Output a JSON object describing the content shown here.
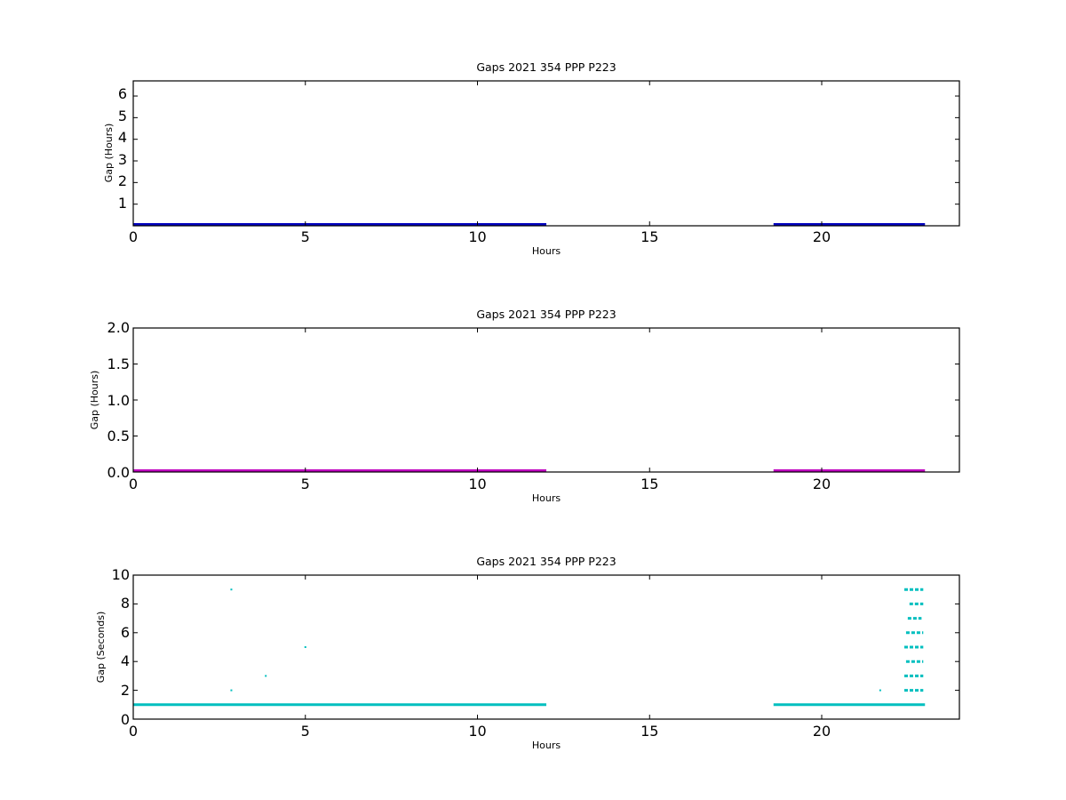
{
  "chart_data": [
    {
      "type": "scatter",
      "title": "Gaps 2021 354 PPP  P223",
      "xlabel": "Hours",
      "ylabel": "Gap (Hours)",
      "xlim": [
        0,
        24
      ],
      "ylim": [
        0,
        6.7
      ],
      "xticks": [
        "0",
        "5",
        "10",
        "15",
        "20"
      ],
      "yticks": [
        "1",
        "2",
        "3",
        "4",
        "5",
        "6"
      ],
      "color": "#0000bf",
      "grid": false,
      "segments": [
        {
          "x_start": 0.0,
          "x_end": 12.0,
          "y": 0.0
        },
        {
          "x_start": 18.6,
          "x_end": 23.0,
          "y": 0.0
        }
      ],
      "points": []
    },
    {
      "type": "scatter",
      "title": "Gaps 2021 354 PPP  P223",
      "xlabel": "Hours",
      "ylabel": "Gap (Hours)",
      "xlim": [
        0,
        24
      ],
      "ylim": [
        0,
        2.0
      ],
      "xticks": [
        "0",
        "5",
        "10",
        "15",
        "20"
      ],
      "yticks": [
        "0.0",
        "0.5",
        "1.0",
        "1.5",
        "2.0"
      ],
      "color": "#bf00bf",
      "grid": false,
      "segments": [
        {
          "x_start": 0.0,
          "x_end": 12.0,
          "y": 0.0
        },
        {
          "x_start": 18.6,
          "x_end": 23.0,
          "y": 0.0
        }
      ],
      "points": []
    },
    {
      "type": "scatter",
      "title": "Gaps 2021 354 PPP  P223",
      "xlabel": "Hours",
      "ylabel": "Gap (Seconds)",
      "xlim": [
        0,
        24
      ],
      "ylim": [
        0,
        10
      ],
      "xticks": [
        "0",
        "5",
        "10",
        "15",
        "20"
      ],
      "yticks": [
        "0",
        "2",
        "4",
        "6",
        "8",
        "10"
      ],
      "color": "#00bfbf",
      "grid": false,
      "segments": [
        {
          "x_start": 0.0,
          "x_end": 12.0,
          "y": 1
        },
        {
          "x_start": 18.6,
          "x_end": 23.0,
          "y": 1
        },
        {
          "x_start": 22.4,
          "x_end": 22.95,
          "y": 2
        },
        {
          "x_start": 22.4,
          "x_end": 22.95,
          "y": 3
        },
        {
          "x_start": 22.45,
          "x_end": 22.95,
          "y": 4
        },
        {
          "x_start": 22.4,
          "x_end": 22.95,
          "y": 5
        },
        {
          "x_start": 22.45,
          "x_end": 22.95,
          "y": 6
        },
        {
          "x_start": 22.5,
          "x_end": 22.9,
          "y": 7
        },
        {
          "x_start": 22.55,
          "x_end": 22.95,
          "y": 8
        },
        {
          "x_start": 22.4,
          "x_end": 22.95,
          "y": 9
        }
      ],
      "points": [
        {
          "x": 2.85,
          "y": 9
        },
        {
          "x": 2.85,
          "y": 2
        },
        {
          "x": 3.85,
          "y": 3
        },
        {
          "x": 5.0,
          "y": 5
        },
        {
          "x": 21.7,
          "y": 2
        }
      ]
    }
  ]
}
